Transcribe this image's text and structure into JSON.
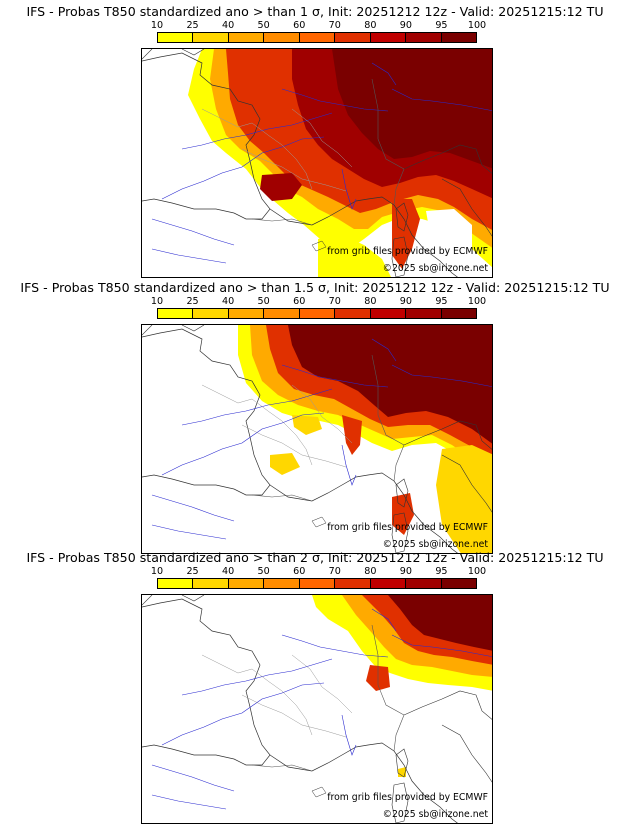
{
  "legend": {
    "ticks": [
      "10",
      "25",
      "40",
      "50",
      "60",
      "70",
      "80",
      "90",
      "95",
      "100"
    ],
    "colors": [
      "#ffff00",
      "#ffd700",
      "#ffaa00",
      "#ff8c00",
      "#ff6600",
      "#e03000",
      "#c00000",
      "#a00000",
      "#7a0000"
    ]
  },
  "panels": [
    {
      "title": "IFS - Probas T850  standardized ano > than 1 σ, Init: 20251212 12z - Valid: 20251215:12 TU",
      "credit_provider": "from grib files provided by ECMWF",
      "credit_copyright": "©2025 sb@irizone.net"
    },
    {
      "title": "IFS - Probas T850  standardized ano > than 1.5 σ, Init: 20251212 12z - Valid: 20251215:12 TU",
      "credit_provider": "from grib files provided by ECMWF",
      "credit_copyright": "©2025 sb@irizone.net"
    },
    {
      "title": "IFS - Probas T850  standardized ano > than 2 σ, Init: 20251212 12z - Valid: 20251215:12 TU",
      "credit_provider": "from grib files provided by ECMWF",
      "credit_copyright": "©2025 sb@irizone.net"
    }
  ]
}
